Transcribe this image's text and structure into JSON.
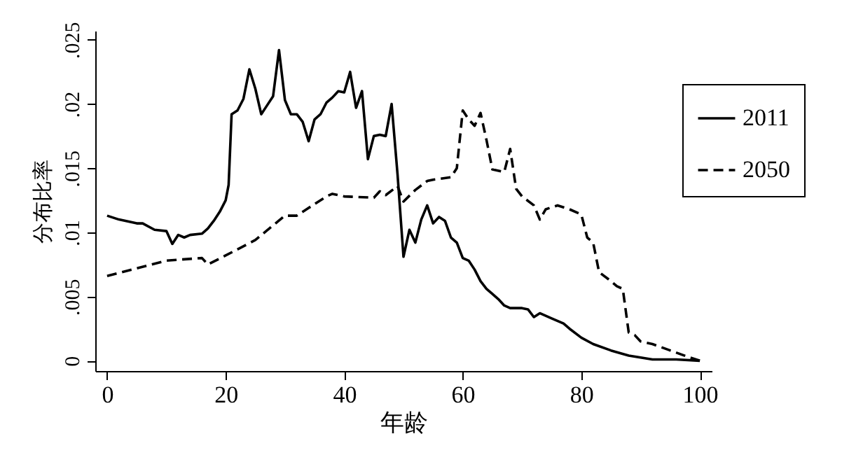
{
  "chart_data": {
    "type": "line",
    "xlabel": "年龄",
    "ylabel": "分布比率",
    "xlim": [
      -2,
      102
    ],
    "xticks": [
      0,
      20,
      40,
      60,
      80,
      100
    ],
    "ylim": [
      -0.0008,
      0.0257
    ],
    "yticks": [
      {
        "value": 0,
        "label": "0"
      },
      {
        "value": 0.005,
        "label": ".005"
      },
      {
        "value": 0.01,
        "label": ".01"
      },
      {
        "value": 0.015,
        "label": ".015"
      },
      {
        "value": 0.02,
        "label": ".02"
      },
      {
        "value": 0.025,
        "label": ".025"
      }
    ],
    "grid": false,
    "legend": "top right",
    "marker": "none",
    "series": [
      {
        "name": "2011",
        "color": "#000000",
        "line_style": "solid",
        "x": [
          0,
          2,
          5,
          6,
          8,
          10,
          11,
          12,
          13,
          14,
          16,
          17,
          18,
          19,
          20,
          20.5,
          21,
          22,
          23,
          24,
          25,
          26,
          27,
          28,
          29,
          30,
          31,
          32,
          33,
          34,
          35,
          36,
          37,
          38,
          39,
          40,
          41,
          42,
          43,
          44,
          45,
          46,
          47,
          48,
          49,
          50,
          51,
          52,
          53,
          54,
          55,
          56,
          57,
          58,
          59,
          60,
          61,
          62,
          63,
          64,
          65,
          66,
          67,
          68,
          70,
          71,
          72,
          73,
          75,
          77,
          78,
          80,
          82,
          85,
          88,
          92,
          96,
          100
        ],
        "values": [
          0.0113,
          0.011,
          0.0107,
          0.0107,
          0.0102,
          0.0101,
          0.0091,
          0.0098,
          0.0096,
          0.0098,
          0.0099,
          0.0103,
          0.0109,
          0.0116,
          0.0125,
          0.0137,
          0.0192,
          0.0195,
          0.0204,
          0.0227,
          0.0212,
          0.0192,
          0.0199,
          0.0206,
          0.0242,
          0.0203,
          0.0192,
          0.0192,
          0.0186,
          0.0171,
          0.0188,
          0.0192,
          0.0201,
          0.0205,
          0.021,
          0.0209,
          0.0225,
          0.0197,
          0.021,
          0.0157,
          0.0175,
          0.0176,
          0.0175,
          0.02,
          0.0145,
          0.0081,
          0.0102,
          0.0092,
          0.011,
          0.0121,
          0.0107,
          0.0112,
          0.0109,
          0.0096,
          0.0092,
          0.008,
          0.0078,
          0.0071,
          0.0062,
          0.0056,
          0.0052,
          0.0048,
          0.0043,
          0.0041,
          0.0041,
          0.004,
          0.0034,
          0.0037,
          0.0033,
          0.0029,
          0.0025,
          0.0018,
          0.0013,
          0.0008,
          0.0004,
          0.0001,
          0.0001,
          0
        ]
      },
      {
        "name": "2050",
        "color": "#000000",
        "line_style": "dashed",
        "x": [
          0,
          5,
          10,
          16,
          17,
          20,
          25,
          30,
          32,
          34,
          37,
          38,
          40,
          45,
          46,
          47,
          49,
          50,
          52,
          54,
          55,
          58,
          59,
          60,
          61,
          62,
          63,
          64,
          65,
          67,
          68,
          69,
          70,
          72,
          73,
          74,
          76,
          78,
          80,
          81,
          82,
          83,
          85,
          86,
          87,
          88,
          89,
          90,
          92,
          95,
          98,
          100
        ],
        "values": [
          0.0066,
          0.0072,
          0.0078,
          0.008,
          0.0075,
          0.0082,
          0.0094,
          0.0113,
          0.0113,
          0.0119,
          0.0128,
          0.013,
          0.0128,
          0.0127,
          0.0132,
          0.0129,
          0.0136,
          0.0124,
          0.0133,
          0.014,
          0.0141,
          0.0143,
          0.015,
          0.0195,
          0.0188,
          0.0183,
          0.0193,
          0.0172,
          0.0149,
          0.0147,
          0.0165,
          0.0134,
          0.0128,
          0.0121,
          0.011,
          0.0118,
          0.0121,
          0.0118,
          0.0114,
          0.0096,
          0.0092,
          0.0069,
          0.0062,
          0.0058,
          0.0056,
          0.0022,
          0.002,
          0.0015,
          0.0013,
          0.0008,
          0.0003,
          0
        ]
      }
    ]
  }
}
